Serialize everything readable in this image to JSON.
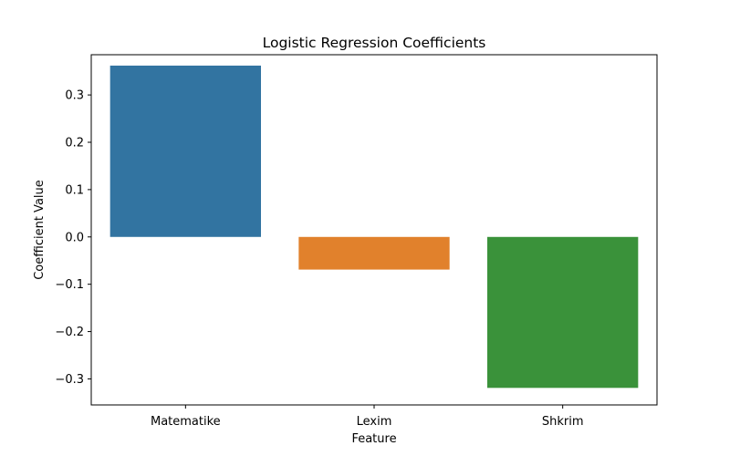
{
  "chart_data": {
    "type": "bar",
    "title": "Logistic Regression Coefficients",
    "xlabel": "Feature",
    "ylabel": "Coefficient Value",
    "categories": [
      "Matematike",
      "Lexim",
      "Shkrim"
    ],
    "values": [
      0.362,
      -0.069,
      -0.319
    ],
    "colors": [
      "#3274a1",
      "#e1812c",
      "#3a923a"
    ],
    "ylim": [
      -0.355,
      0.385
    ],
    "yticks": [
      -0.3,
      -0.2,
      -0.1,
      0.0,
      0.1,
      0.2,
      0.3
    ],
    "ytick_labels": [
      "−0.3",
      "−0.2",
      "−0.1",
      "0.0",
      "0.1",
      "0.2",
      "0.3"
    ],
    "grid": false,
    "legend": false
  }
}
